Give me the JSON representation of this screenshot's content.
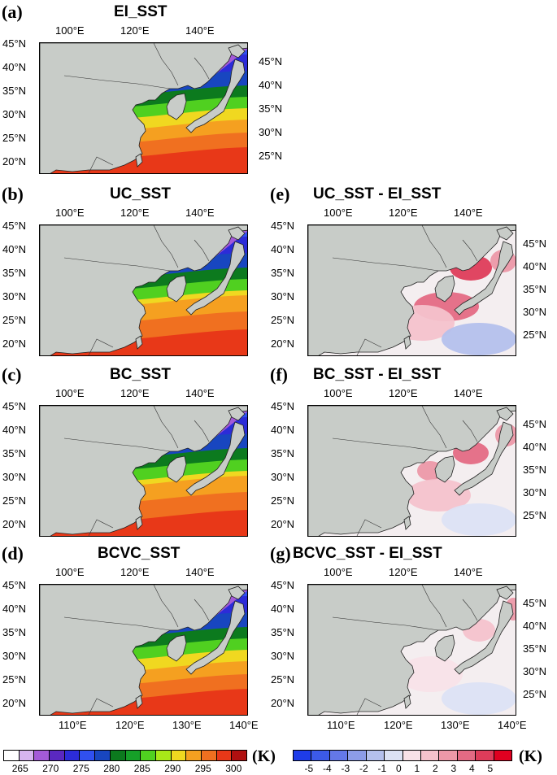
{
  "panels": [
    {
      "id": "a",
      "label": "(a)",
      "title": "EI_SST",
      "kind": "sst",
      "variant": "ei"
    },
    {
      "id": "b",
      "label": "(b)",
      "title": "UC_SST",
      "kind": "sst",
      "variant": "uc"
    },
    {
      "id": "c",
      "label": "(c)",
      "title": "BC_SST",
      "kind": "sst",
      "variant": "bc"
    },
    {
      "id": "d",
      "label": "(d)",
      "title": "BCVC_SST",
      "kind": "sst",
      "variant": "bcvc"
    },
    {
      "id": "e",
      "label": "(e)",
      "title": "UC_SST - EI_SST",
      "kind": "diff",
      "variant": "uc"
    },
    {
      "id": "f",
      "label": "(f)",
      "title": "BC_SST - EI_SST",
      "kind": "diff",
      "variant": "bc"
    },
    {
      "id": "g",
      "label": "(g)",
      "title": "BCVC_SST - EI_SST",
      "kind": "diff",
      "variant": "bcvc"
    }
  ],
  "axes": {
    "lon_labels_top": [
      "100°E",
      "120°E",
      "140°E"
    ],
    "lon_labels_bottom": [
      "110°E",
      "120°E",
      "130°E",
      "140°E"
    ],
    "lat_labels": [
      "45°N",
      "40°N",
      "35°N",
      "30°N",
      "25°N",
      "20°N"
    ],
    "lat_labels_right": [
      "45°N",
      "40°N",
      "35°N",
      "30°N",
      "25°N"
    ]
  },
  "colorbars": {
    "sst": {
      "unit": "(K)",
      "labels": [
        "265",
        "270",
        "275",
        "280",
        "285",
        "290",
        "295",
        "300"
      ],
      "colors": [
        "#ffffff",
        "#d6b4f0",
        "#a45ad8",
        "#5a28c0",
        "#2c2cd8",
        "#3050f0",
        "#1846c0",
        "#0c7a1e",
        "#16a028",
        "#50d020",
        "#a8e818",
        "#f0d820",
        "#f5a020",
        "#f07020",
        "#e83818",
        "#b01010"
      ]
    },
    "diff": {
      "unit": "(K)",
      "labels": [
        "-5",
        "-4",
        "-3",
        "-2",
        "-1",
        "0",
        "1",
        "2",
        "3",
        "4",
        "5"
      ],
      "colors": [
        "#1e3ce8",
        "#3c5ae8",
        "#6478e8",
        "#8c9ce8",
        "#b4c0ec",
        "#dce2f4",
        "#f8e2e8",
        "#f4c2cc",
        "#ec98a8",
        "#e46a84",
        "#de3c5a",
        "#e00020"
      ]
    }
  }
}
